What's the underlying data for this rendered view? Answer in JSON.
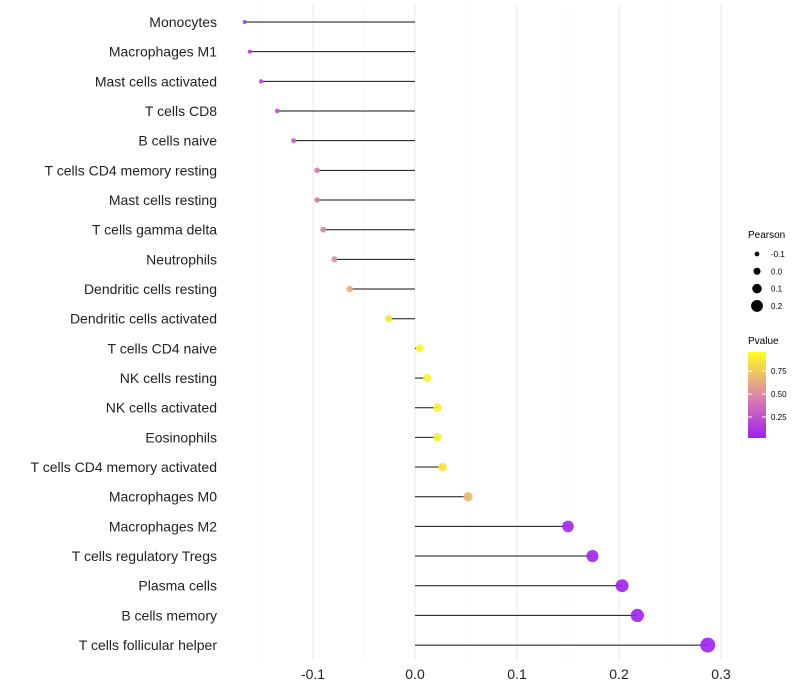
{
  "chart_data": {
    "type": "lollipop",
    "title": "",
    "xlabel": "",
    "ylabel": "",
    "xlim": [
      -0.175,
      0.3
    ],
    "x_ticks": [
      "-0.1",
      "0.0",
      "0.1",
      "0.2",
      "0.3"
    ],
    "x_tick_values": [
      -0.1,
      0,
      0.1,
      0.2,
      0.3
    ],
    "categories": [
      "Monocytes",
      "Macrophages M1",
      "Mast cells activated",
      "T cells CD8",
      "B cells naive",
      "T cells CD4 memory resting",
      "Mast cells resting",
      "T cells gamma delta",
      "Neutrophils",
      "Dendritic cells resting",
      "Dendritic cells activated",
      "T cells CD4 naive",
      "NK cells resting",
      "NK cells activated",
      "Eosinophils",
      "T cells CD4 memory activated",
      "Macrophages M0",
      "Macrophages M2",
      "T cells regulatory  Tregs",
      "Plasma cells",
      "B cells memory",
      "T cells follicular helper"
    ],
    "pearson": [
      -0.167,
      -0.162,
      -0.151,
      -0.135,
      -0.119,
      -0.096,
      -0.096,
      -0.09,
      -0.079,
      -0.064,
      -0.026,
      0.005,
      0.012,
      0.022,
      0.022,
      0.027,
      0.052,
      0.15,
      0.174,
      0.203,
      0.218,
      0.287
    ],
    "pvalue": [
      0.12,
      0.15,
      0.2,
      0.25,
      0.33,
      0.45,
      0.45,
      0.47,
      0.52,
      0.65,
      0.9,
      0.98,
      0.95,
      0.93,
      0.93,
      0.9,
      0.7,
      0.03,
      0.02,
      0.005,
      0.002,
      0.0001
    ],
    "legend": {
      "size_title": "Pearson",
      "size_labels": [
        "-0.1",
        "0.0",
        "0.1",
        "0.2"
      ],
      "size_values": [
        -0.1,
        0,
        0.1,
        0.2
      ],
      "color_title": "Pvalue",
      "color_labels": [
        "0.75",
        "0.50",
        "0.25"
      ],
      "color_values": [
        0.75,
        0.5,
        0.25
      ],
      "color_low": "#a020f0",
      "color_mid": "#dd88a8",
      "color_high": "#ffff20",
      "placement": "right"
    }
  }
}
